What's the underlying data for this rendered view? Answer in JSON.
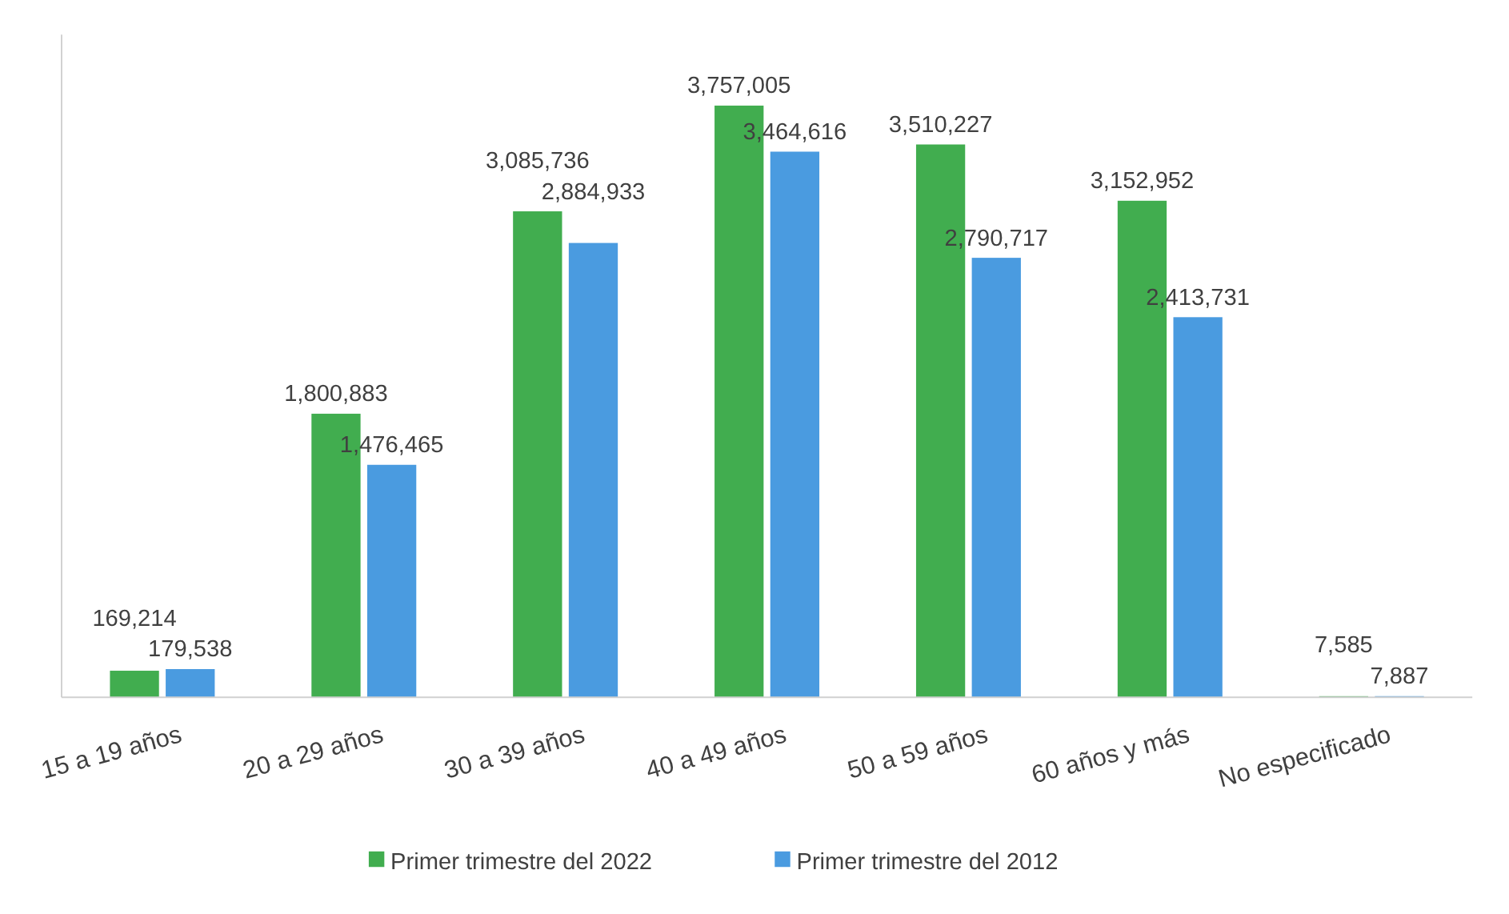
{
  "chart_data": {
    "type": "bar",
    "categories": [
      "15 a 19 años",
      "20 a 29 años",
      "30 a 39 años",
      "40 a 49 años",
      "50 a 59 años",
      "60 años y más",
      "No especificado"
    ],
    "series": [
      {
        "name": "Primer trimestre del 2022",
        "color": "#41ad4f",
        "values": [
          169214,
          1800883,
          3085736,
          3757005,
          3510227,
          3152952,
          7585
        ],
        "value_labels": [
          "169,214",
          "1,800,883",
          "3,085,736",
          "3,757,005",
          "3,510,227",
          "3,152,952",
          "7,585"
        ]
      },
      {
        "name": "Primer trimestre del 2012",
        "color": "#4a9be0",
        "values": [
          179538,
          1476465,
          2884933,
          3464616,
          2790717,
          2413731,
          7887
        ],
        "value_labels": [
          "179,538",
          "1,476,465",
          "2,884,933",
          "3,464,616",
          "2,790,717",
          "2,413,731",
          "7,887"
        ]
      }
    ],
    "tick_labels": "x",
    "legend": "bottom"
  }
}
